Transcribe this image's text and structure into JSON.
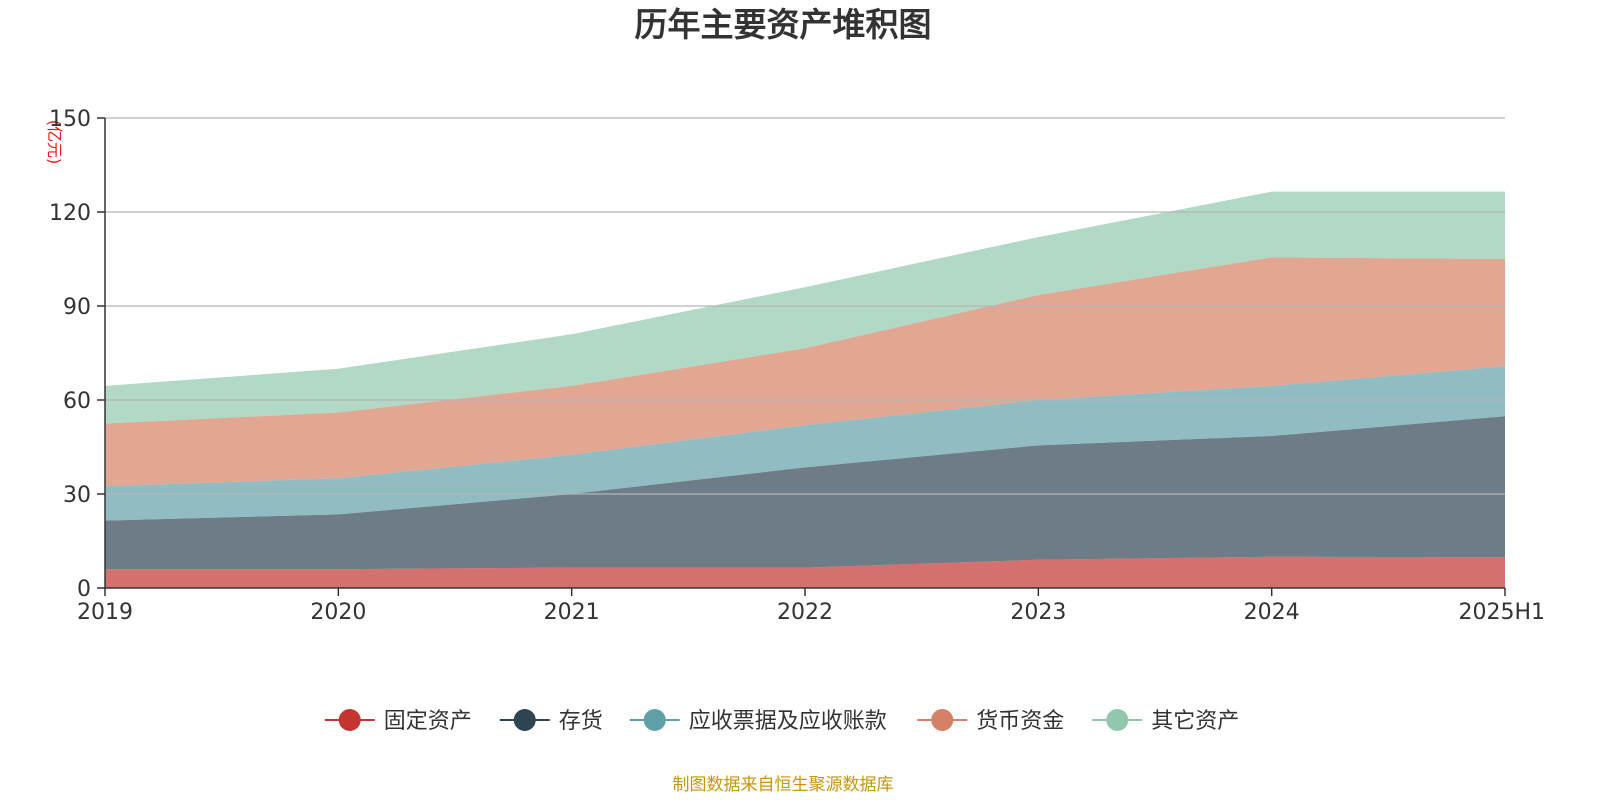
{
  "chart_data": {
    "type": "area",
    "stacked": true,
    "title": "历年主要资产堆积图",
    "unit_label": "(亿元)",
    "categories": [
      "2019",
      "2020",
      "2021",
      "2022",
      "2023",
      "2024",
      "2025H1"
    ],
    "ylim": [
      0,
      150
    ],
    "yticks": [
      0,
      30,
      60,
      90,
      120,
      150
    ],
    "grid": true,
    "legend_position": "bottom",
    "series": [
      {
        "name": "固定资产",
        "color": "#c23531",
        "values": [
          6,
          6,
          6.5,
          6.5,
          9,
          10,
          9.8
        ]
      },
      {
        "name": "存货",
        "color": "#2f4554",
        "values": [
          15.5,
          17.5,
          23.5,
          32,
          36.5,
          38.5,
          45
        ]
      },
      {
        "name": "应收票据及应收账款",
        "color": "#61a0a8",
        "values": [
          11,
          11.5,
          12.5,
          13.5,
          14.5,
          16,
          16
        ]
      },
      {
        "name": "货币资金",
        "color": "#d48265",
        "values": [
          20,
          21,
          22,
          24.5,
          33.5,
          41,
          34.2
        ]
      },
      {
        "name": "其它资产",
        "color": "#91c7ae",
        "values": [
          12,
          14,
          16.5,
          19.5,
          18.5,
          21,
          21.5
        ]
      }
    ]
  },
  "footer": {
    "source": "制图数据来自恒生聚源数据库"
  }
}
